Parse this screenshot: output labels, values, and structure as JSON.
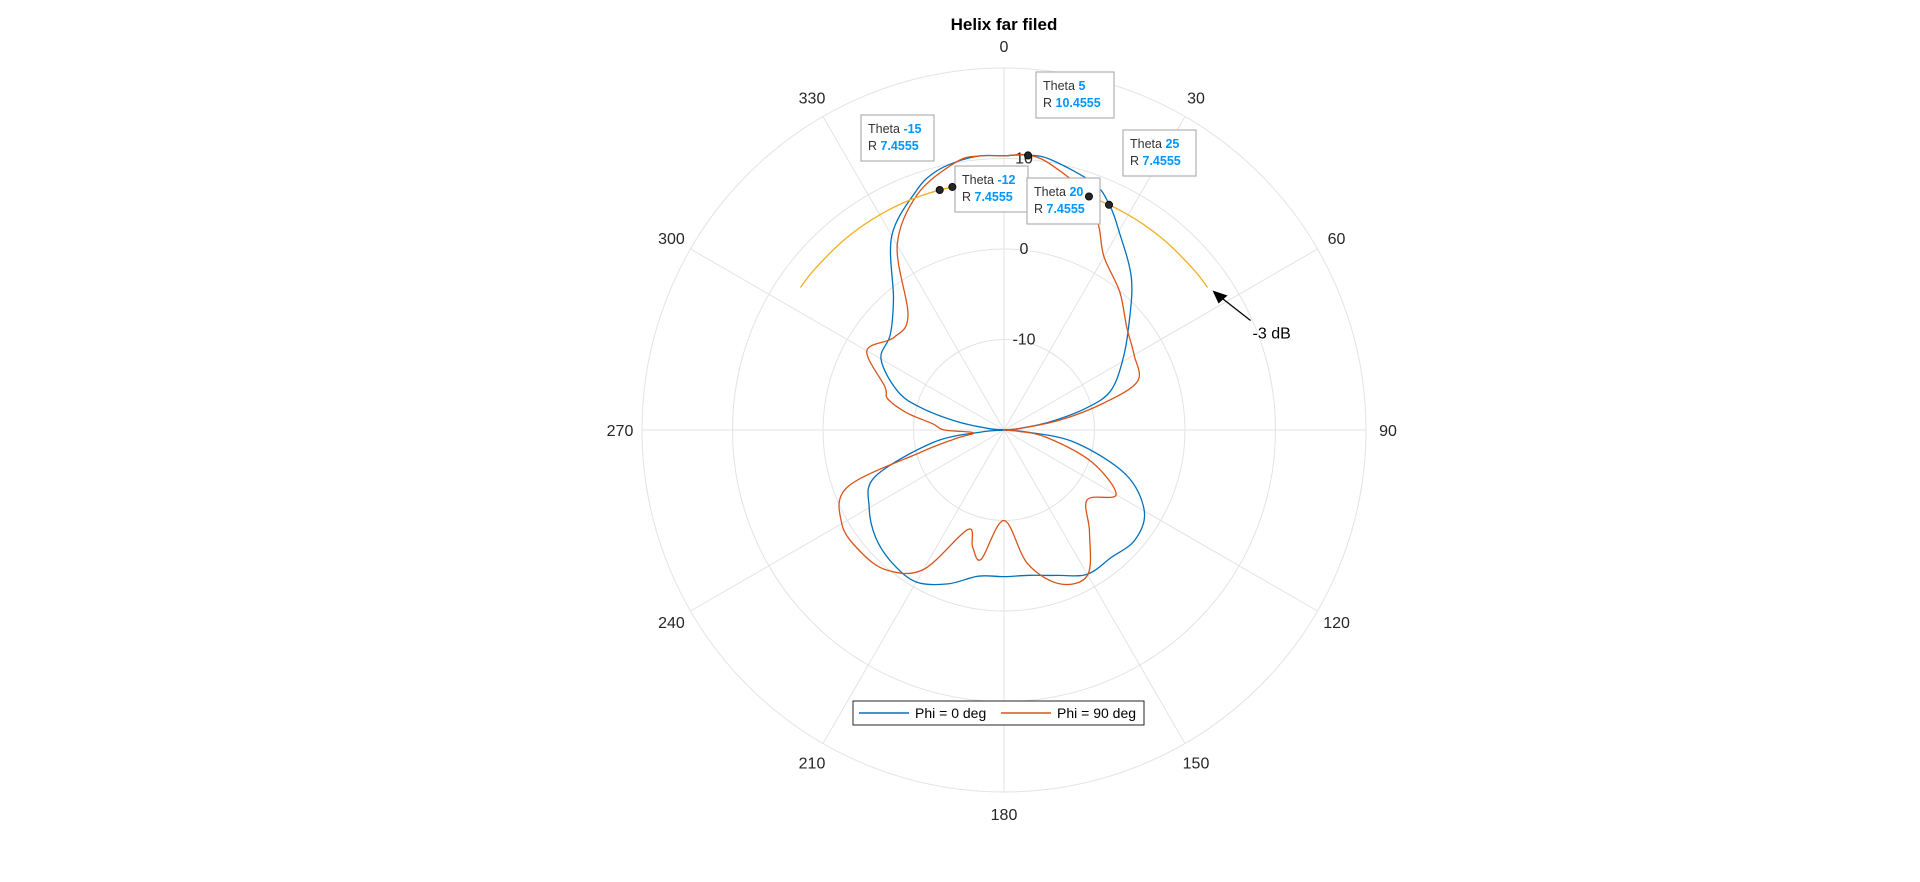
{
  "chart_data": {
    "type": "polar-line",
    "title": "Helix far filed",
    "angle_ticks": [
      "0",
      "30",
      "60",
      "90",
      "120",
      "150",
      "180",
      "210",
      "240",
      "270",
      "300",
      "330"
    ],
    "radial_ticks": [
      {
        "value": -10,
        "label": "-10"
      },
      {
        "value": 0,
        "label": "0"
      },
      {
        "value": 10,
        "label": "10"
      }
    ],
    "rlim": [
      -20,
      20
    ],
    "theta_zero": "top",
    "theta_direction": "clockwise",
    "grid": true,
    "legend_position": "bottom-center",
    "series": [
      {
        "name": "Phi = 0 deg",
        "color": "#0072BD",
        "theta": [
          0,
          5,
          10,
          20,
          25,
          30,
          40,
          50,
          60,
          70,
          75,
          80,
          85,
          90,
          95,
          100,
          110,
          120,
          130,
          140,
          150,
          160,
          170,
          180,
          190,
          200,
          210,
          220,
          230,
          240,
          250,
          260,
          265,
          270,
          275,
          280,
          285,
          290,
          300,
          310,
          320,
          330,
          340,
          345,
          350,
          355,
          360
        ],
        "r": [
          10.3,
          10.5,
          10.3,
          9,
          7.5,
          5.4,
          1.9,
          -2,
          -4.9,
          -7.5,
          -10.5,
          -14.8,
          -18.4,
          -20,
          -17.4,
          -12,
          -5.7,
          -2.1,
          -1.1,
          -1.6,
          -1.6,
          -2.9,
          -3.7,
          -3.8,
          -3.6,
          -1.9,
          -0.6,
          -0.8,
          -1.5,
          -2.8,
          -4.8,
          -12,
          -17.4,
          -20,
          -18.4,
          -14.8,
          -10.5,
          -7.5,
          -4.3,
          -3.6,
          -1,
          4.8,
          8.2,
          9.5,
          10.1,
          10.4,
          10.3
        ]
      },
      {
        "name": "Phi = 90 deg",
        "color": "#D95319",
        "theta": [
          0,
          5,
          10,
          20,
          25,
          30,
          40,
          50,
          60,
          70,
          75,
          80,
          85,
          90,
          95,
          100,
          110,
          120,
          130,
          140,
          150,
          160,
          170,
          180,
          190,
          195,
          200,
          210,
          220,
          230,
          240,
          250,
          255,
          260,
          265,
          270,
          275,
          280,
          285,
          290,
          300,
          310,
          320,
          330,
          340,
          350,
          355,
          360
        ],
        "r": [
          10.3,
          10.5,
          9.8,
          7.5,
          4.8,
          2.1,
          -0.1,
          -2.3,
          -3.4,
          -4.3,
          -8.7,
          -13.8,
          -18.4,
          -20,
          -18.4,
          -15.2,
          -9.7,
          -5.7,
          -8,
          -5.3,
          -1.5,
          -1.9,
          -5,
          -10,
          -5.5,
          -6.6,
          -8.3,
          -2.2,
          0.2,
          0.8,
          0.7,
          -1.6,
          -10.4,
          -14.6,
          -16.6,
          -13.4,
          -12.1,
          -9.1,
          -6.7,
          -6,
          -2.5,
          -4.1,
          -3.5,
          3.6,
          7.8,
          10.1,
          10.4,
          10.3
        ]
      },
      {
        "name": "",
        "color": "#EDB120",
        "theta": [
          -55,
          -50,
          -40,
          -30,
          -20,
          -10,
          0,
          10,
          20,
          30,
          40,
          50,
          55
        ],
        "r": [
          7.4555,
          7.4555,
          7.4555,
          7.4555,
          7.4555,
          7.4555,
          7.4555,
          7.4555,
          7.4555,
          7.4555,
          7.4555,
          7.4555,
          7.4555
        ]
      }
    ],
    "datatips": [
      {
        "theta": 5,
        "r": 10.4555,
        "theta_label": "Theta",
        "theta_text": "5",
        "r_label": "R",
        "r_text": "10.4555"
      },
      {
        "theta": -15,
        "r": 7.4555,
        "theta_label": "Theta",
        "theta_text": "-15",
        "r_label": "R",
        "r_text": "7.4555"
      },
      {
        "theta": -12,
        "r": 7.4555,
        "theta_label": "Theta",
        "theta_text": "-12",
        "r_label": "R",
        "r_text": "7.4555"
      },
      {
        "theta": 20,
        "r": 7.4555,
        "theta_label": "Theta",
        "theta_text": "20",
        "r_label": "R",
        "r_text": "7.4555"
      },
      {
        "theta": 25,
        "r": 7.4555,
        "theta_label": "Theta",
        "theta_text": "25",
        "r_label": "R",
        "r_text": "7.4555"
      }
    ],
    "annotation": {
      "text": "-3 dB",
      "theta": 55,
      "r": 7.4555
    },
    "colors": {
      "datatip_value": "#0096FF",
      "grid": "#E3E3E3",
      "marker": "#262626"
    }
  }
}
